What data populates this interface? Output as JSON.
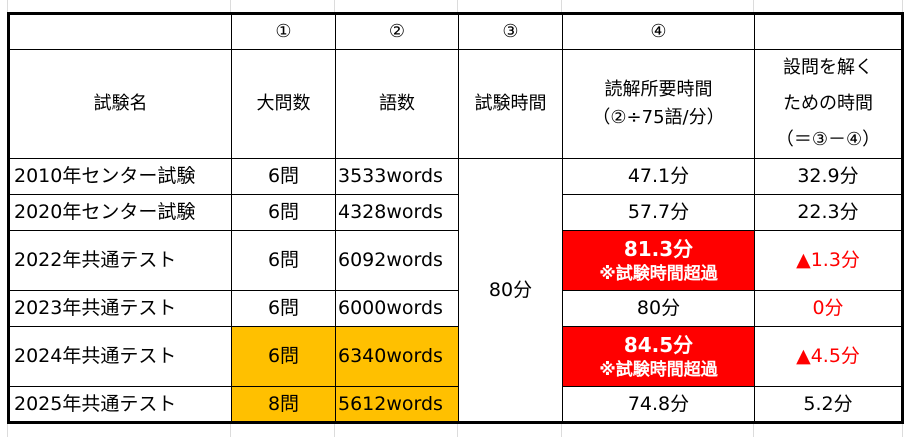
{
  "table": {
    "number_row": [
      "",
      "①",
      "②",
      "③",
      "④",
      ""
    ],
    "headers": {
      "name": "試験名",
      "sections": "大問数",
      "words": "語数",
      "exam_time": "試験時間",
      "reading_time_line1": "読解所要時間",
      "reading_time_line2": "（②÷75語/分）",
      "answer_time_line1": "設問を解く",
      "answer_time_line2": "ための時間",
      "answer_time_line3": "（＝③－④）"
    },
    "exam_time_merged": "80分",
    "rows": [
      {
        "name": "2010年センター試験",
        "sections": "6問",
        "words": "3533words",
        "reading": "47.1分",
        "reading_note": "",
        "answer": "32.9分"
      },
      {
        "name": "2020年センター試験",
        "sections": "6問",
        "words": "4328words",
        "reading": "57.7分",
        "reading_note": "",
        "answer": "22.3分"
      },
      {
        "name": "2022年共通テスト",
        "sections": "6問",
        "words": "6092words",
        "reading": "81.3分",
        "reading_note": "※試験時間超過",
        "answer": "▲1.3分"
      },
      {
        "name": "2023年共通テスト",
        "sections": "6問",
        "words": "6000words",
        "reading": "80分",
        "reading_note": "",
        "answer": "0分"
      },
      {
        "name": "2024年共通テスト",
        "sections": "6問",
        "words": "6340words",
        "reading": "84.5分",
        "reading_note": "※試験時間超過",
        "answer": "▲4.5分"
      },
      {
        "name": "2025年共通テスト",
        "sections": "8問",
        "words": "5612words",
        "reading": "74.8分",
        "reading_note": "",
        "answer": "5.2分"
      }
    ],
    "colors": {
      "highlight": "#FFC000",
      "over_time": "#FF0000",
      "negative_text": "#FF0000"
    }
  }
}
